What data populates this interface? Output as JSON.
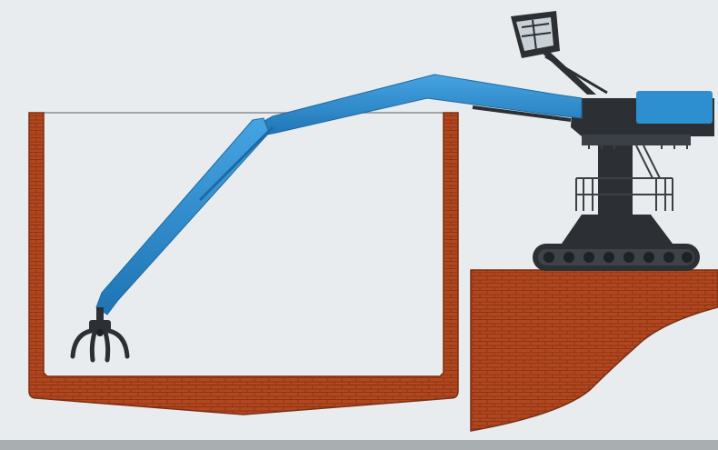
{
  "diagram": {
    "components": [
      {
        "name": "ship-hold",
        "material": "brick"
      },
      {
        "name": "quay-wall",
        "material": "brick"
      },
      {
        "name": "material-handler",
        "parts": [
          "crawler-tracks",
          "pedestal",
          "upperstructure",
          "operator-cab",
          "boom",
          "stick",
          "grab"
        ]
      }
    ]
  },
  "colors": {
    "background": "#e8ecee",
    "brick": "#b2471f",
    "brick_mortar": "#8c3414",
    "boom": "#2e8fd0",
    "boom_shadow": "#1c6aa5",
    "machine": "#2c3034",
    "cab_glass": "#c9d1d6",
    "footer_bar": "#a9aeb1"
  }
}
